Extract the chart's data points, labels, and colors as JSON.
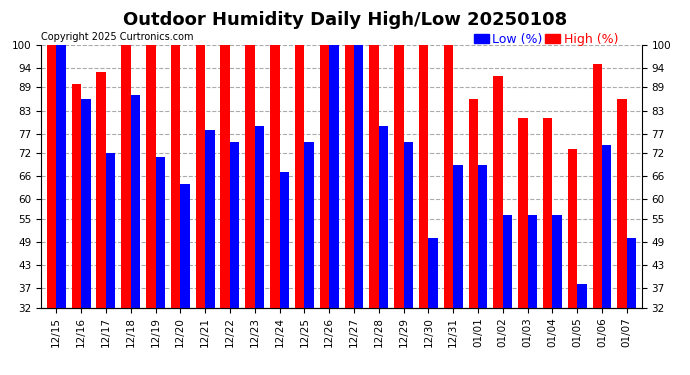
{
  "title": "Outdoor Humidity Daily High/Low 20250108",
  "copyright": "Copyright 2025 Curtronics.com",
  "legend_low": "Low (%)",
  "legend_high": "High (%)",
  "dates": [
    "12/15",
    "12/16",
    "12/17",
    "12/18",
    "12/19",
    "12/20",
    "12/21",
    "12/22",
    "12/23",
    "12/24",
    "12/25",
    "12/26",
    "12/27",
    "12/28",
    "12/29",
    "12/30",
    "12/31",
    "01/01",
    "01/02",
    "01/03",
    "01/04",
    "01/05",
    "01/06",
    "01/07"
  ],
  "high": [
    100,
    90,
    93,
    100,
    100,
    100,
    100,
    100,
    100,
    100,
    100,
    100,
    100,
    100,
    100,
    100,
    100,
    86,
    92,
    81,
    81,
    73,
    95,
    86
  ],
  "low": [
    100,
    86,
    72,
    87,
    71,
    64,
    78,
    75,
    79,
    67,
    75,
    100,
    100,
    79,
    75,
    50,
    69,
    69,
    56,
    56,
    56,
    38,
    74,
    50
  ],
  "ylim_min": 32,
  "ylim_max": 100,
  "yticks": [
    32,
    37,
    43,
    49,
    55,
    60,
    66,
    72,
    77,
    83,
    89,
    94,
    100
  ],
  "high_color": "#ff0000",
  "low_color": "#0000ff",
  "bg_color": "#ffffff",
  "grid_color": "#aaaaaa",
  "bar_width": 0.38,
  "title_fontsize": 13,
  "tick_fontsize": 7.5,
  "legend_fontsize": 9,
  "copyright_fontsize": 7
}
